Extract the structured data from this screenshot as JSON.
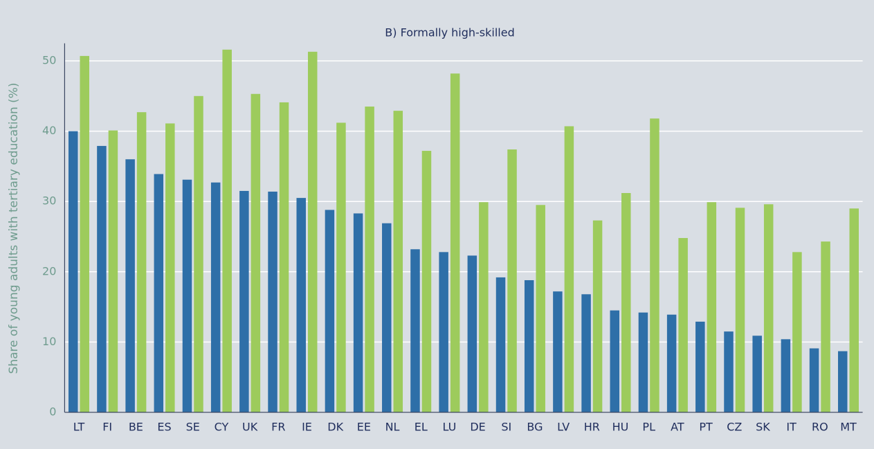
{
  "chart_data": {
    "type": "bar",
    "title": "B) Formally high-skilled",
    "y_label": "Share of young adults with tertiary education (%)",
    "categories": [
      "LT",
      "FI",
      "BE",
      "ES",
      "SE",
      "CY",
      "UK",
      "FR",
      "IE",
      "DK",
      "EE",
      "NL",
      "EL",
      "LU",
      "DE",
      "SI",
      "BG",
      "LV",
      "HR",
      "HU",
      "PL",
      "AT",
      "PT",
      "CZ",
      "SK",
      "IT",
      "RO",
      "MT"
    ],
    "series": [
      {
        "color": "#2e6fa8",
        "values": [
          40,
          37.9,
          36,
          33.9,
          33.1,
          32.7,
          31.5,
          31.4,
          30.5,
          28.8,
          28.3,
          26.9,
          23.2,
          22.8,
          22.3,
          19.2,
          18.8,
          17.2,
          16.8,
          14.5,
          14.2,
          13.9,
          12.9,
          11.5,
          10.9,
          10.4,
          9.1,
          8.7
        ]
      },
      {
        "color": "#9dcb5c",
        "values": [
          50.7,
          40.1,
          42.7,
          41.1,
          45.0,
          51.6,
          45.3,
          44.1,
          51.3,
          41.2,
          43.5,
          42.9,
          37.2,
          48.2,
          29.9,
          37.4,
          29.5,
          40.7,
          27.3,
          31.2,
          41.8,
          24.8,
          29.9,
          29.1,
          29.6,
          22.8,
          24.3,
          29.0
        ]
      }
    ],
    "ylim": [
      0,
      52.5
    ],
    "yticks": [
      0,
      10,
      20,
      30,
      40,
      50
    ],
    "grid": true
  }
}
